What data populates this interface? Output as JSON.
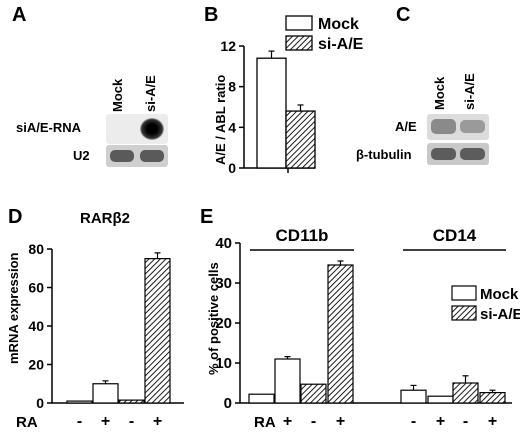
{
  "panels": {
    "a": {
      "letter": "A",
      "lanes": [
        "Mock",
        "si-A/E"
      ],
      "rows": [
        "siA/E-RNA",
        "U2"
      ]
    },
    "b": {
      "letter": "B"
    },
    "c": {
      "letter": "C",
      "lanes": [
        "Mock",
        "si-A/E"
      ],
      "rows": [
        "A/E",
        "β-tubulin"
      ]
    },
    "d": {
      "letter": "D",
      "treatment_label": "RA",
      "treatment_marks": [
        "-",
        "+",
        "-",
        "+"
      ]
    },
    "e": {
      "letter": "E",
      "treatment_label": "RA",
      "treatment_marks": [
        "-",
        "+",
        "-",
        "+",
        "-",
        "+",
        "-",
        "+"
      ]
    }
  },
  "chart_data": [
    {
      "id": "B",
      "type": "bar",
      "categories": [
        ""
      ],
      "series": [
        {
          "name": "Mock",
          "values": [
            10.8
          ],
          "errors": [
            0.7
          ],
          "fill": "white"
        },
        {
          "name": "si-A/E",
          "values": [
            5.6
          ],
          "errors": [
            0.6
          ],
          "fill": "hatched"
        }
      ],
      "ylabel": "A/E / ABL ratio",
      "ylim": [
        0,
        12
      ],
      "yticks": [
        0,
        4,
        8,
        12
      ],
      "legend": "top-right"
    },
    {
      "id": "D",
      "type": "bar",
      "title": "RARβ2",
      "categories": [
        "Mock -RA",
        "Mock +RA",
        "si-A/E -RA",
        "si-A/E +RA"
      ],
      "values": [
        1,
        10,
        1.5,
        75
      ],
      "errors": [
        0,
        1.5,
        0,
        3
      ],
      "fills": [
        "white",
        "white",
        "hatched",
        "hatched"
      ],
      "ylabel": "mRNA expression",
      "ylim": [
        0,
        80
      ],
      "yticks": [
        0,
        20,
        40,
        60,
        80
      ]
    },
    {
      "id": "E",
      "type": "bar",
      "groups": [
        "CD11b",
        "CD14"
      ],
      "categories": [
        "Mock -RA",
        "Mock +RA",
        "si-A/E -RA",
        "si-A/E +RA",
        "Mock -RA",
        "Mock +RA",
        "si-A/E -RA",
        "si-A/E +RA"
      ],
      "values": [
        2.2,
        11,
        4.7,
        34.5,
        3.2,
        1.7,
        5,
        2.6
      ],
      "errors": [
        0,
        0.6,
        0,
        1,
        1.2,
        0,
        1.8,
        0.6
      ],
      "fills": [
        "white",
        "white",
        "hatched",
        "hatched",
        "white",
        "white",
        "hatched",
        "hatched"
      ],
      "series": [
        {
          "name": "Mock"
        },
        {
          "name": "si-A/E"
        }
      ],
      "ylabel": "% of positive cells",
      "ylim": [
        0,
        40
      ],
      "yticks": [
        0,
        10,
        20,
        30,
        40
      ],
      "legend": "right"
    }
  ]
}
